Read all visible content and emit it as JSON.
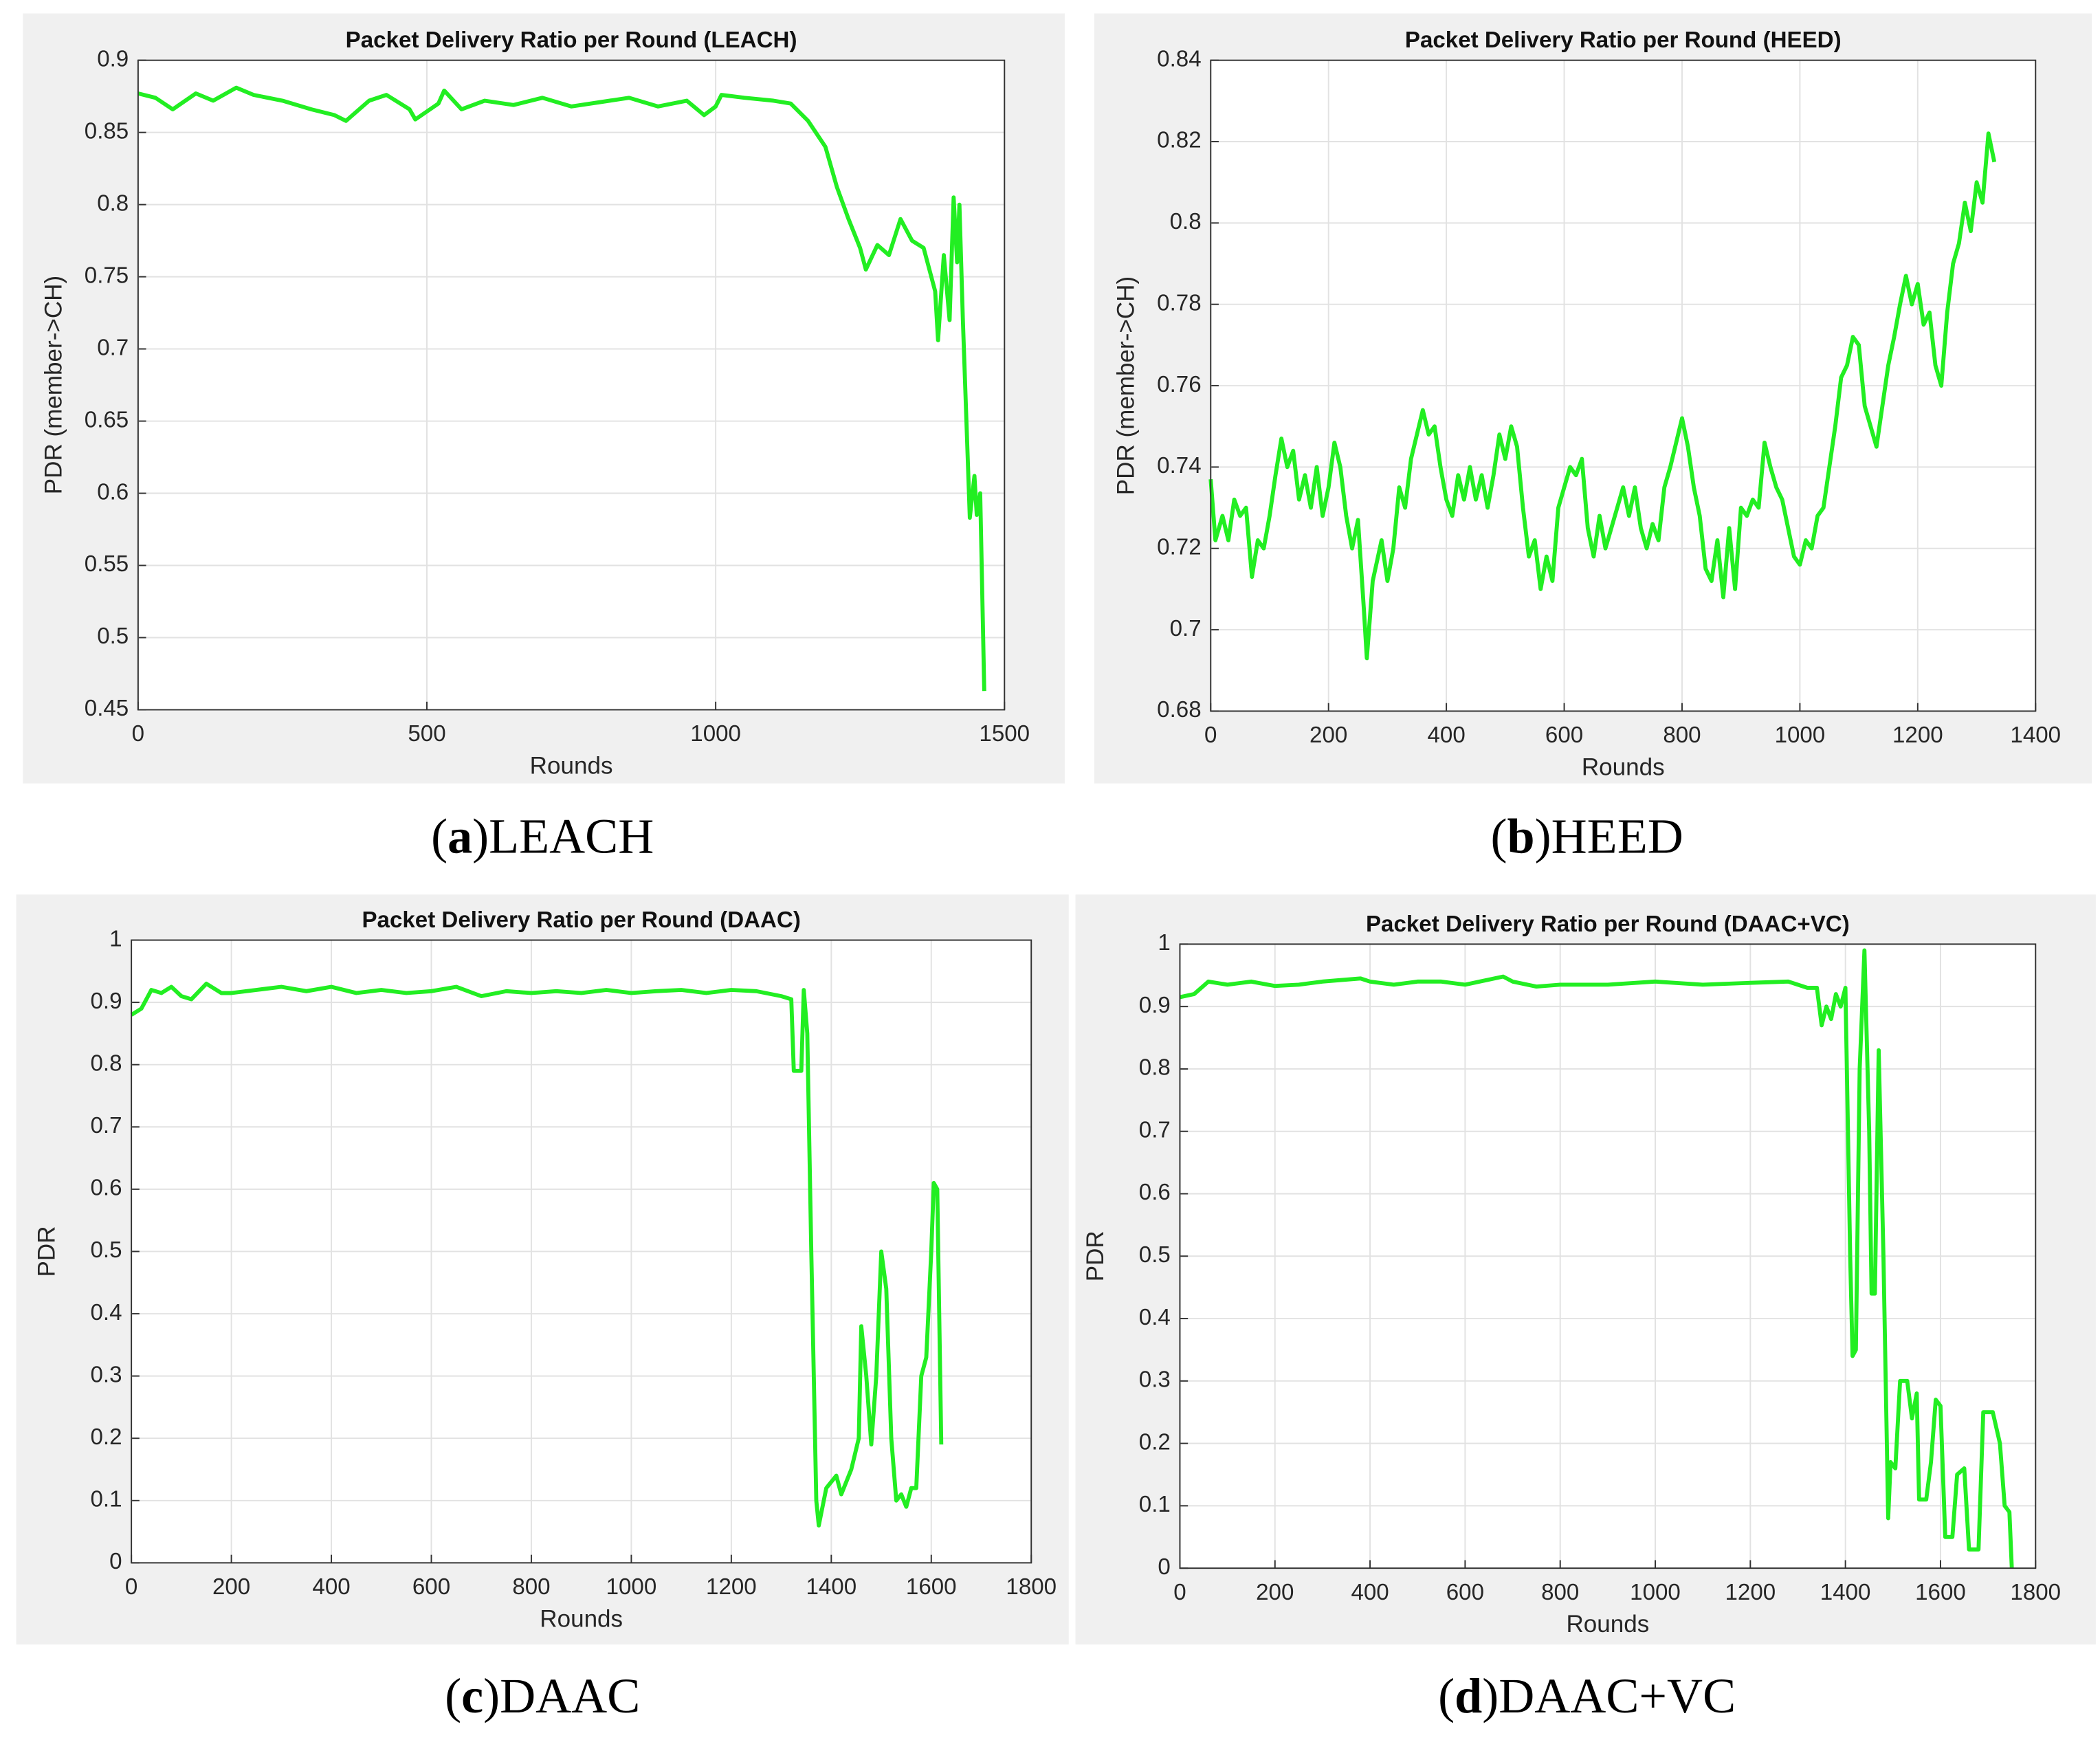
{
  "chart_data": [
    {
      "type": "line",
      "title": "Packet Delivery Ratio per Round (LEACH)",
      "xlabel": "Rounds",
      "ylabel": "PDR (member->CH)",
      "caption": [
        "(",
        "a",
        ")LEACH"
      ],
      "color": "#22ee22",
      "grid": true,
      "xlim": [
        0,
        1500
      ],
      "xticks": [
        0,
        500,
        1000,
        1500
      ],
      "ylim": [
        0.45,
        0.9
      ],
      "yticks": [
        0.45,
        0.5,
        0.55,
        0.6,
        0.65,
        0.7,
        0.75,
        0.8,
        0.85,
        0.9
      ],
      "x": [
        0,
        30,
        60,
        100,
        130,
        170,
        200,
        250,
        300,
        340,
        360,
        400,
        430,
        470,
        480,
        520,
        530,
        560,
        600,
        650,
        700,
        750,
        800,
        850,
        900,
        950,
        980,
        1000,
        1010,
        1050,
        1100,
        1130,
        1160,
        1190,
        1210,
        1230,
        1250,
        1260,
        1280,
        1300,
        1320,
        1340,
        1360,
        1370,
        1380,
        1385,
        1395,
        1405,
        1412,
        1418,
        1422,
        1428,
        1440,
        1448,
        1452,
        1458,
        1465
      ],
      "values": [
        0.877,
        0.874,
        0.866,
        0.877,
        0.872,
        0.881,
        0.876,
        0.872,
        0.866,
        0.862,
        0.858,
        0.872,
        0.876,
        0.866,
        0.859,
        0.87,
        0.879,
        0.866,
        0.872,
        0.869,
        0.874,
        0.868,
        0.871,
        0.874,
        0.868,
        0.872,
        0.862,
        0.868,
        0.876,
        0.874,
        0.872,
        0.87,
        0.858,
        0.84,
        0.812,
        0.79,
        0.77,
        0.755,
        0.772,
        0.765,
        0.79,
        0.775,
        0.77,
        0.755,
        0.74,
        0.706,
        0.765,
        0.72,
        0.805,
        0.76,
        0.8,
        0.72,
        0.583,
        0.612,
        0.585,
        0.6,
        0.463
      ]
    },
    {
      "type": "line",
      "title": "Packet Delivery Ratio per Round (HEED)",
      "xlabel": "Rounds",
      "ylabel": "PDR (member->CH)",
      "caption": [
        "(",
        "b",
        ")HEED"
      ],
      "color": "#22ee22",
      "grid": true,
      "xlim": [
        0,
        1400
      ],
      "xticks": [
        0,
        200,
        400,
        600,
        800,
        1000,
        1200,
        1400
      ],
      "ylim": [
        0.68,
        0.84
      ],
      "yticks": [
        0.68,
        0.7,
        0.72,
        0.74,
        0.76,
        0.78,
        0.8,
        0.82,
        0.84
      ],
      "x": [
        0,
        8,
        20,
        30,
        40,
        50,
        60,
        70,
        80,
        90,
        100,
        110,
        120,
        130,
        140,
        150,
        160,
        170,
        180,
        190,
        200,
        210,
        220,
        230,
        240,
        250,
        260,
        265,
        275,
        290,
        300,
        310,
        320,
        330,
        340,
        350,
        360,
        370,
        380,
        390,
        400,
        410,
        420,
        430,
        440,
        450,
        460,
        470,
        480,
        490,
        500,
        510,
        520,
        530,
        540,
        550,
        560,
        570,
        580,
        590,
        600,
        610,
        620,
        630,
        640,
        650,
        660,
        670,
        680,
        690,
        700,
        710,
        720,
        730,
        740,
        750,
        760,
        770,
        780,
        790,
        800,
        810,
        820,
        830,
        840,
        850,
        860,
        870,
        880,
        890,
        900,
        910,
        920,
        930,
        940,
        950,
        960,
        970,
        980,
        990,
        1000,
        1010,
        1020,
        1030,
        1040,
        1050,
        1060,
        1070,
        1080,
        1090,
        1100,
        1110,
        1120,
        1130,
        1140,
        1150,
        1160,
        1170,
        1180,
        1190,
        1200,
        1210,
        1220,
        1230,
        1240,
        1250,
        1260,
        1270,
        1280,
        1290,
        1300,
        1310,
        1320,
        1330
      ],
      "values": [
        0.737,
        0.722,
        0.728,
        0.722,
        0.732,
        0.728,
        0.73,
        0.713,
        0.722,
        0.72,
        0.728,
        0.738,
        0.747,
        0.74,
        0.744,
        0.732,
        0.738,
        0.73,
        0.74,
        0.728,
        0.735,
        0.746,
        0.74,
        0.728,
        0.72,
        0.727,
        0.705,
        0.693,
        0.712,
        0.722,
        0.712,
        0.72,
        0.735,
        0.73,
        0.742,
        0.748,
        0.754,
        0.748,
        0.75,
        0.74,
        0.732,
        0.728,
        0.738,
        0.732,
        0.74,
        0.732,
        0.738,
        0.73,
        0.738,
        0.748,
        0.742,
        0.75,
        0.745,
        0.73,
        0.718,
        0.722,
        0.71,
        0.718,
        0.712,
        0.73,
        0.735,
        0.74,
        0.738,
        0.742,
        0.725,
        0.718,
        0.728,
        0.72,
        0.725,
        0.73,
        0.735,
        0.728,
        0.735,
        0.725,
        0.72,
        0.726,
        0.722,
        0.735,
        0.74,
        0.746,
        0.752,
        0.745,
        0.735,
        0.728,
        0.715,
        0.712,
        0.722,
        0.708,
        0.725,
        0.71,
        0.73,
        0.728,
        0.732,
        0.73,
        0.746,
        0.74,
        0.735,
        0.732,
        0.725,
        0.718,
        0.716,
        0.722,
        0.72,
        0.728,
        0.73,
        0.74,
        0.75,
        0.762,
        0.765,
        0.772,
        0.77,
        0.755,
        0.75,
        0.745,
        0.755,
        0.765,
        0.772,
        0.78,
        0.787,
        0.78,
        0.785,
        0.775,
        0.778,
        0.765,
        0.76,
        0.778,
        0.79,
        0.795,
        0.805,
        0.798,
        0.81,
        0.805,
        0.822,
        0.815
      ]
    },
    {
      "type": "line",
      "title": "Packet Delivery Ratio per Round (DAAC)",
      "xlabel": "Rounds",
      "ylabel": "PDR",
      "caption": [
        "(",
        "c",
        ")DAAC"
      ],
      "color": "#22ee22",
      "grid": true,
      "xlim": [
        0,
        1800
      ],
      "xticks": [
        0,
        200,
        400,
        600,
        800,
        1000,
        1200,
        1400,
        1600,
        1800
      ],
      "ylim": [
        0,
        1
      ],
      "yticks": [
        0,
        0.1,
        0.2,
        0.3,
        0.4,
        0.5,
        0.6,
        0.7,
        0.8,
        0.9,
        1
      ],
      "x": [
        0,
        20,
        40,
        60,
        80,
        100,
        120,
        150,
        180,
        200,
        250,
        300,
        350,
        400,
        450,
        500,
        550,
        600,
        650,
        700,
        750,
        800,
        850,
        900,
        950,
        1000,
        1050,
        1100,
        1150,
        1200,
        1250,
        1300,
        1320,
        1325,
        1340,
        1345,
        1352,
        1360,
        1370,
        1375,
        1390,
        1410,
        1420,
        1440,
        1455,
        1460,
        1470,
        1480,
        1490,
        1500,
        1510,
        1520,
        1530,
        1540,
        1550,
        1560,
        1570,
        1580,
        1590,
        1600,
        1605,
        1612,
        1620
      ],
      "values": [
        0.88,
        0.89,
        0.92,
        0.915,
        0.925,
        0.91,
        0.905,
        0.93,
        0.915,
        0.915,
        0.92,
        0.925,
        0.918,
        0.925,
        0.915,
        0.92,
        0.915,
        0.918,
        0.925,
        0.91,
        0.918,
        0.915,
        0.918,
        0.915,
        0.92,
        0.915,
        0.918,
        0.92,
        0.915,
        0.92,
        0.918,
        0.91,
        0.905,
        0.79,
        0.79,
        0.92,
        0.85,
        0.5,
        0.1,
        0.06,
        0.12,
        0.14,
        0.11,
        0.15,
        0.2,
        0.38,
        0.3,
        0.19,
        0.3,
        0.5,
        0.44,
        0.2,
        0.1,
        0.11,
        0.09,
        0.12,
        0.12,
        0.3,
        0.33,
        0.5,
        0.61,
        0.6,
        0.19
      ]
    },
    {
      "type": "line",
      "title": "Packet Delivery Ratio per Round (DAAC+VC)",
      "xlabel": "Rounds",
      "ylabel": "PDR",
      "caption": [
        "(",
        "d",
        ")DAAC+VC"
      ],
      "color": "#22ee22",
      "grid": true,
      "xlim": [
        0,
        1800
      ],
      "xticks": [
        0,
        200,
        400,
        600,
        800,
        1000,
        1200,
        1400,
        1600,
        1800
      ],
      "ylim": [
        0,
        1
      ],
      "yticks": [
        0,
        0.1,
        0.2,
        0.3,
        0.4,
        0.5,
        0.6,
        0.7,
        0.8,
        0.9,
        1
      ],
      "x": [
        0,
        30,
        60,
        100,
        150,
        200,
        250,
        300,
        380,
        400,
        450,
        500,
        550,
        600,
        680,
        700,
        750,
        800,
        900,
        1000,
        1100,
        1200,
        1280,
        1320,
        1340,
        1350,
        1360,
        1370,
        1380,
        1390,
        1400,
        1410,
        1415,
        1422,
        1430,
        1440,
        1450,
        1455,
        1462,
        1470,
        1480,
        1490,
        1495,
        1505,
        1515,
        1530,
        1540,
        1550,
        1555,
        1570,
        1580,
        1590,
        1600,
        1610,
        1625,
        1635,
        1650,
        1660,
        1680,
        1690,
        1710,
        1725,
        1735,
        1745,
        1750
      ],
      "values": [
        0.915,
        0.92,
        0.94,
        0.935,
        0.94,
        0.933,
        0.935,
        0.94,
        0.945,
        0.94,
        0.935,
        0.94,
        0.94,
        0.935,
        0.948,
        0.94,
        0.932,
        0.935,
        0.935,
        0.94,
        0.935,
        0.938,
        0.94,
        0.93,
        0.93,
        0.87,
        0.9,
        0.88,
        0.92,
        0.9,
        0.93,
        0.5,
        0.34,
        0.35,
        0.8,
        0.99,
        0.7,
        0.44,
        0.44,
        0.83,
        0.5,
        0.08,
        0.17,
        0.16,
        0.3,
        0.3,
        0.24,
        0.28,
        0.11,
        0.11,
        0.17,
        0.27,
        0.26,
        0.05,
        0.05,
        0.15,
        0.16,
        0.03,
        0.03,
        0.25,
        0.25,
        0.2,
        0.1,
        0.09,
        0
      ]
    }
  ]
}
